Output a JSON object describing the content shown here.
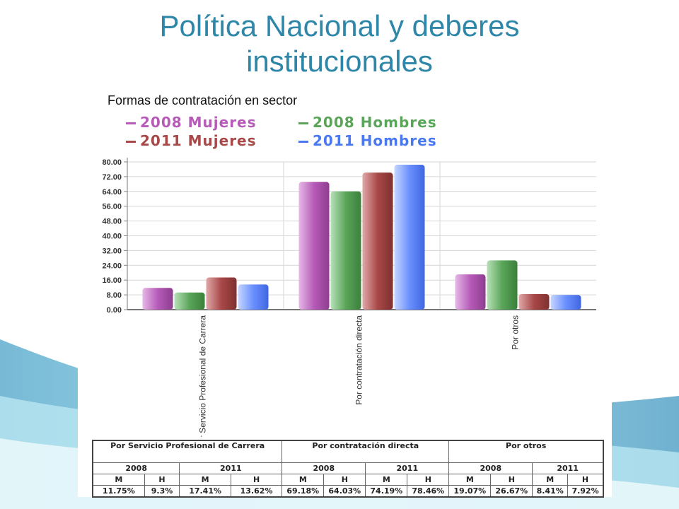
{
  "slide": {
    "title": "Política Nacional y deberes institucionales",
    "subtitle": "Formas de contratación en sector"
  },
  "legend": [
    {
      "label": "2008 Mujeres",
      "color": "#b65bb8"
    },
    {
      "label": "2008 Hombres",
      "color": "#5aa55a"
    },
    {
      "label": "2011 Mujeres",
      "color": "#a84848"
    },
    {
      "label": "2011 Hombres",
      "color": "#4a78f0"
    }
  ],
  "chart_data": {
    "type": "bar",
    "categories": [
      "Por Servicio Profesional de Carrera",
      "Por contratación directa",
      "Por otros"
    ],
    "series": [
      {
        "name": "2008 Mujeres",
        "values": [
          11.75,
          69.18,
          19.07
        ]
      },
      {
        "name": "2008 Hombres",
        "values": [
          9.3,
          64.03,
          26.67
        ]
      },
      {
        "name": "2011 Mujeres",
        "values": [
          17.41,
          74.19,
          8.41
        ]
      },
      {
        "name": "2011 Hombres",
        "values": [
          13.62,
          78.46,
          7.92
        ]
      }
    ],
    "ylim": [
      0,
      80
    ],
    "yticks": [
      "0.00",
      "8.00",
      "16.00",
      "24.00",
      "32.00",
      "40.00",
      "48.00",
      "56.00",
      "64.00",
      "72.00",
      "80.00"
    ],
    "grid": true,
    "legend_position": "top-left"
  },
  "table": {
    "groups": [
      "Por Servicio Profesional de Carrera",
      "Por contratación directa",
      "Por otros"
    ],
    "years": [
      "2008",
      "2011",
      "2008",
      "2011",
      "2008",
      "2011"
    ],
    "sexes": [
      "M",
      "H",
      "M",
      "H",
      "M",
      "H",
      "M",
      "H",
      "M",
      "H",
      "M",
      "H"
    ],
    "values": [
      "11.75%",
      "9.3%",
      "17.41%",
      "13.62%",
      "69.18%",
      "64.03%",
      "74.19%",
      "78.46%",
      "19.07%",
      "26.67%",
      "8.41%",
      "7.92%"
    ]
  }
}
